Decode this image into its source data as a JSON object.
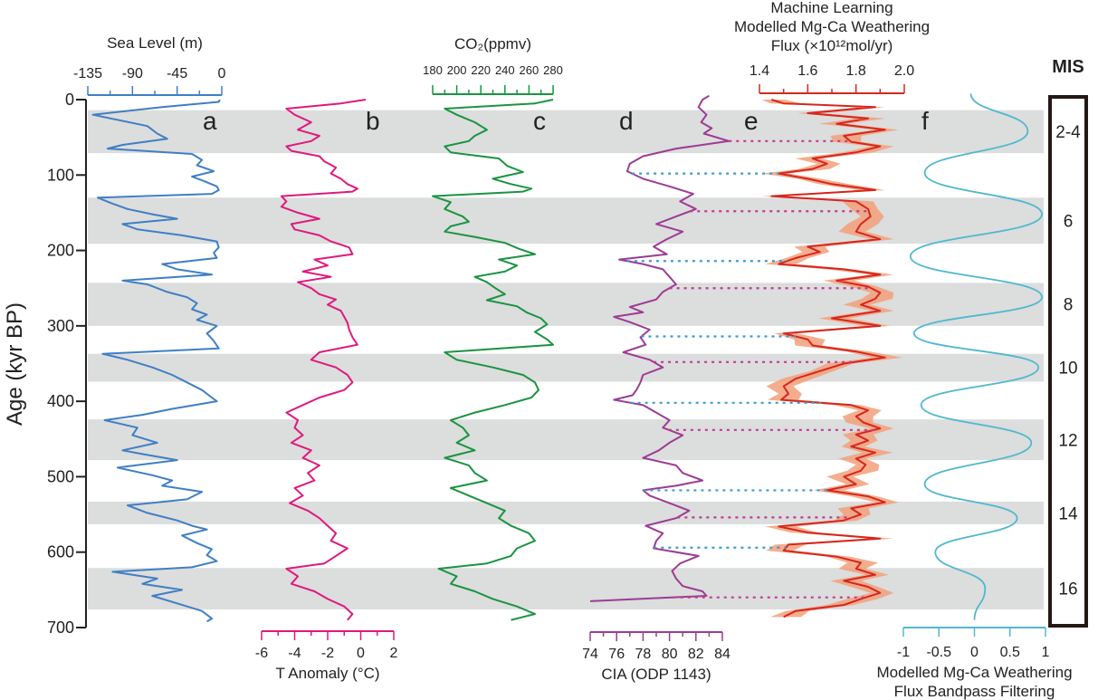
{
  "chart_data": {
    "type": "line",
    "title": "",
    "ylabel": "Age (kyr BP)",
    "ylim": [
      0,
      700
    ],
    "y_ticks": [
      0,
      100,
      200,
      300,
      400,
      500,
      600,
      700
    ],
    "y_tick_labels": [
      "0",
      "100",
      "200",
      "300",
      "400",
      "500",
      "600",
      "700"
    ],
    "glacial_bands_kyr": [
      [
        14,
        71
      ],
      [
        130,
        191
      ],
      [
        243,
        300
      ],
      [
        337,
        374
      ],
      [
        424,
        478
      ],
      [
        533,
        563
      ],
      [
        621,
        676
      ]
    ],
    "mis": {
      "title": "MIS",
      "labels": [
        {
          "label": "2-4",
          "age": 42
        },
        {
          "label": "6",
          "age": 160
        },
        {
          "label": "8",
          "age": 271
        },
        {
          "label": "10",
          "age": 355
        },
        {
          "label": "12",
          "age": 451
        },
        {
          "label": "14",
          "age": 548
        },
        {
          "label": "16",
          "age": 648
        }
      ]
    },
    "panels": [
      {
        "id": "a",
        "name": "Sea Level",
        "xlabel": "Sea Level (m)",
        "axis_position": "top",
        "xlim": [
          -135,
          0
        ],
        "ticks": [
          -135,
          -90,
          -45,
          0
        ],
        "color": "#3f7fc4",
        "ages": [
          0,
          3,
          10,
          20,
          35,
          45,
          52,
          60,
          65,
          72,
          80,
          87,
          95,
          102,
          108,
          115,
          120,
          125,
          130,
          138,
          145,
          152,
          158,
          165,
          172,
          180,
          188,
          196,
          203,
          210,
          218,
          225,
          232,
          240,
          245,
          255,
          262,
          270,
          278,
          285,
          292,
          300,
          310,
          320,
          330,
          337,
          345,
          355,
          365,
          375,
          385,
          395,
          400,
          410,
          418,
          425,
          435,
          445,
          455,
          465,
          470,
          478,
          488,
          498,
          505,
          512,
          520,
          530,
          538,
          548,
          558,
          565,
          570,
          578,
          588,
          596,
          604,
          612,
          620,
          626,
          635,
          642,
          650,
          658,
          668,
          678,
          688,
          692
        ],
        "values": [
          -2,
          -3,
          -60,
          -130,
          -75,
          -65,
          -55,
          -100,
          -115,
          -30,
          -20,
          -25,
          -8,
          -30,
          -18,
          -5,
          -3,
          -10,
          -125,
          -110,
          -95,
          -70,
          -45,
          -100,
          -85,
          -40,
          -5,
          -3,
          -8,
          -5,
          -60,
          -45,
          -10,
          -100,
          -75,
          -55,
          -35,
          -25,
          -30,
          -15,
          -25,
          -5,
          -15,
          -8,
          -3,
          -120,
          -95,
          -70,
          -50,
          -35,
          -20,
          -10,
          -5,
          -50,
          -80,
          -118,
          -85,
          -90,
          -65,
          -100,
          -80,
          -45,
          -105,
          -70,
          -50,
          -60,
          -20,
          -35,
          -95,
          -75,
          -45,
          -30,
          -15,
          -40,
          -25,
          -10,
          -15,
          -5,
          -30,
          -110,
          -65,
          -80,
          -40,
          -70,
          -45,
          -20,
          -10,
          -15
        ]
      },
      {
        "id": "b",
        "name": "T Anomaly",
        "xlabel": "T Anomaly (°C)",
        "axis_position": "bottom",
        "xlim": [
          -6,
          2
        ],
        "ticks": [
          -6,
          -4,
          -2,
          0,
          2
        ],
        "color": "#e0197d",
        "ages": [
          0,
          5,
          12,
          20,
          30,
          40,
          48,
          55,
          62,
          68,
          75,
          82,
          90,
          98,
          105,
          112,
          118,
          122,
          128,
          135,
          142,
          150,
          158,
          165,
          172,
          180,
          188,
          196,
          205,
          212,
          220,
          228,
          235,
          242,
          250,
          258,
          265,
          272,
          280,
          288,
          296,
          305,
          315,
          325,
          335,
          345,
          355,
          365,
          375,
          385,
          395,
          405,
          415,
          425,
          435,
          445,
          455,
          465,
          475,
          485,
          495,
          505,
          515,
          525,
          535,
          545,
          555,
          565,
          575,
          585,
          595,
          605,
          615,
          622,
          632,
          642,
          652,
          662,
          672,
          682,
          690
        ],
        "values": [
          0.3,
          -1.2,
          -4.5,
          -4.0,
          -3.0,
          -3.8,
          -2.5,
          -3.0,
          -4.5,
          -4.2,
          -2.5,
          -2.2,
          -1.5,
          -1.8,
          -1.2,
          -0.8,
          -0.2,
          -0.5,
          -4.8,
          -4.5,
          -4.8,
          -3.8,
          -2.5,
          -4.2,
          -4.0,
          -2.5,
          -1.8,
          -0.7,
          -0.5,
          -2.8,
          -2.0,
          -3.5,
          -1.8,
          -3.8,
          -3.0,
          -2.5,
          -1.5,
          -2.0,
          -1.2,
          -1.0,
          -0.8,
          -0.7,
          -0.5,
          -0.2,
          -2.5,
          -3.0,
          -1.5,
          -0.8,
          -0.5,
          -1.0,
          -2.5,
          -3.5,
          -4.5,
          -3.8,
          -4.0,
          -3.5,
          -4.2,
          -3.0,
          -3.5,
          -2.5,
          -3.2,
          -2.8,
          -4.0,
          -3.5,
          -4.3,
          -3.2,
          -2.5,
          -2.0,
          -1.5,
          -1.8,
          -0.8,
          -1.5,
          -2.2,
          -4.5,
          -3.8,
          -4.2,
          -2.8,
          -2.0,
          -1.0,
          -0.5,
          -0.8
        ]
      },
      {
        "id": "c",
        "name": "CO2",
        "xlabel": "CO₂(ppmv)",
        "axis_position": "top",
        "xlim": [
          180,
          280
        ],
        "ticks": [
          180,
          200,
          220,
          240,
          260,
          280
        ],
        "color": "#1a9440",
        "ages": [
          0,
          5,
          12,
          20,
          30,
          40,
          48,
          55,
          62,
          70,
          78,
          88,
          96,
          105,
          112,
          118,
          122,
          128,
          136,
          145,
          155,
          162,
          168,
          175,
          182,
          190,
          198,
          205,
          212,
          220,
          228,
          235,
          242,
          250,
          258,
          266,
          274,
          282,
          290,
          298,
          308,
          318,
          325,
          335,
          345,
          355,
          365,
          375,
          385,
          395,
          405,
          415,
          425,
          435,
          445,
          455,
          465,
          475,
          485,
          495,
          505,
          515,
          525,
          535,
          545,
          555,
          565,
          575,
          585,
          595,
          605,
          615,
          622,
          632,
          642,
          652,
          662,
          672,
          682,
          690
        ],
        "values": [
          280,
          265,
          190,
          200,
          215,
          225,
          215,
          210,
          190,
          195,
          235,
          242,
          255,
          230,
          245,
          262,
          255,
          180,
          195,
          190,
          205,
          210,
          195,
          190,
          215,
          240,
          252,
          265,
          235,
          250,
          240,
          215,
          225,
          232,
          240,
          225,
          250,
          258,
          270,
          275,
          265,
          275,
          280,
          190,
          200,
          230,
          255,
          265,
          268,
          262,
          240,
          215,
          195,
          205,
          210,
          200,
          215,
          190,
          210,
          215,
          225,
          195,
          210,
          225,
          240,
          235,
          245,
          260,
          265,
          250,
          245,
          225,
          185,
          200,
          195,
          215,
          230,
          250,
          265,
          245
        ]
      },
      {
        "id": "d",
        "name": "CIA",
        "xlabel": "CIA (ODP 1143)",
        "axis_position": "bottom",
        "xlim": [
          74,
          84
        ],
        "ticks": [
          74,
          76,
          78,
          80,
          82,
          84
        ],
        "color": "#9c3c94",
        "ages": [
          -5,
          0,
          10,
          20,
          30,
          38,
          45,
          55,
          65,
          75,
          85,
          95,
          105,
          115,
          125,
          135,
          145,
          155,
          165,
          175,
          185,
          195,
          205,
          212,
          218,
          225,
          235,
          245,
          255,
          265,
          275,
          282,
          288,
          295,
          305,
          315,
          325,
          335,
          345,
          355,
          365,
          375,
          385,
          392,
          398,
          405,
          415,
          425,
          435,
          445,
          455,
          465,
          475,
          485,
          495,
          505,
          512,
          518,
          525,
          535,
          545,
          555,
          565,
          575,
          585,
          595,
          605,
          615,
          625,
          635,
          645,
          652,
          658,
          665
        ],
        "values": [
          83,
          82.5,
          82.2,
          82.8,
          82.4,
          83.2,
          82.6,
          84.5,
          80.5,
          78,
          77,
          76.8,
          78,
          80,
          81.8,
          80.8,
          82,
          80.5,
          79,
          81,
          79.8,
          78.8,
          79.8,
          76.2,
          78,
          79.5,
          80,
          80.5,
          79.5,
          79,
          77,
          78,
          75.8,
          77,
          78.5,
          77.8,
          78.2,
          76.5,
          78.5,
          79.5,
          78,
          77.8,
          77.5,
          77.2,
          75.8,
          78,
          79,
          80,
          79.5,
          81,
          80,
          79.2,
          78,
          80.5,
          81,
          82.5,
          80.5,
          78,
          78.5,
          80,
          81.5,
          80.5,
          78.2,
          79.5,
          79,
          78.8,
          82.2,
          80.8,
          80.2,
          80.5,
          81,
          82.5,
          82.8,
          74
        ]
      },
      {
        "id": "e",
        "name": "Machine Learning Modelled Mg-Ca Weathering Flux",
        "xlabel": "Machine Learning Modelled Mg-Ca Weathering Flux (×10¹²mol/yr)",
        "xlabel_lines": [
          "Machine Learning",
          "Modelled Mg-Ca Weathering",
          "Flux (×10¹²mol/yr)"
        ],
        "axis_position": "top",
        "xlim": [
          1.4,
          2.0
        ],
        "ticks": [
          1.4,
          1.6,
          1.8,
          2.0
        ],
        "tick_labels": [
          "1.4",
          "1.6",
          "1.8",
          "2.0"
        ],
        "color": "#d7261e",
        "band_color": "#f2a07a",
        "ages": [
          0,
          5,
          10,
          18,
          25,
          32,
          40,
          48,
          56,
          62,
          70,
          78,
          85,
          92,
          98,
          105,
          112,
          120,
          128,
          135,
          145,
          155,
          165,
          175,
          185,
          195,
          202,
          210,
          218,
          225,
          232,
          240,
          248,
          256,
          264,
          272,
          280,
          290,
          300,
          310,
          318,
          326,
          334,
          342,
          350,
          360,
          370,
          380,
          390,
          398,
          405,
          412,
          420,
          428,
          436,
          444,
          452,
          460,
          468,
          476,
          484,
          492,
          500,
          510,
          518,
          526,
          534,
          542,
          550,
          558,
          566,
          574,
          582,
          590,
          598,
          606,
          614,
          622,
          630,
          638,
          646,
          654,
          662,
          670,
          678,
          686
        ],
        "values": [
          1.45,
          1.5,
          1.88,
          1.6,
          1.85,
          1.72,
          1.92,
          1.75,
          1.78,
          1.9,
          1.8,
          1.62,
          1.68,
          1.62,
          1.48,
          1.6,
          1.7,
          1.88,
          1.45,
          1.8,
          1.85,
          1.86,
          1.82,
          1.8,
          1.9,
          1.6,
          1.65,
          1.55,
          1.48,
          1.75,
          1.9,
          1.72,
          1.85,
          1.9,
          1.88,
          1.82,
          1.9,
          1.7,
          1.9,
          1.5,
          1.6,
          1.62,
          1.8,
          1.92,
          1.75,
          1.65,
          1.55,
          1.5,
          1.52,
          1.49,
          1.78,
          1.85,
          1.8,
          1.83,
          1.9,
          1.8,
          1.85,
          1.78,
          1.88,
          1.8,
          1.84,
          1.82,
          1.75,
          1.8,
          1.68,
          1.85,
          1.92,
          1.78,
          1.82,
          1.75,
          1.48,
          1.6,
          1.9,
          1.52,
          1.5,
          1.72,
          1.82,
          1.8,
          1.88,
          1.75,
          1.85,
          1.9,
          1.82,
          1.75,
          1.55,
          1.5
        ],
        "band_halfwidth": 0.04
      },
      {
        "id": "f",
        "name": "Modelled Mg-Ca Weathering Flux Bandpass Filtering",
        "xlabel": "Modelled Mg-Ca Weathering Flux Bandpass Filtering",
        "xlabel_lines": [
          "Modelled Mg-Ca Weathering",
          "Flux Bandpass Filtering"
        ],
        "axis_position": "bottom",
        "xlim": [
          -1,
          1
        ],
        "ticks": [
          -1,
          -0.5,
          0,
          0.5,
          1
        ],
        "tick_labels": [
          "-1",
          "-0.5",
          "0",
          "0.5",
          "1"
        ],
        "color": "#4fb8cf",
        "ages": [
          -8,
          42,
          97,
          152,
          208,
          262,
          310,
          355,
          405,
          455,
          510,
          555,
          600,
          648,
          690
        ],
        "values": [
          -0.05,
          0.75,
          -0.7,
          0.95,
          -0.9,
          0.95,
          -0.85,
          0.9,
          -0.75,
          0.8,
          -0.7,
          0.6,
          -0.55,
          0.15,
          0.0
        ]
      }
    ],
    "tie_lines": [
      {
        "age": 55,
        "color": "#c03c8e",
        "from": "d",
        "to": "e"
      },
      {
        "age": 98,
        "color": "#3a9bd6",
        "from": "d",
        "to": "e"
      },
      {
        "age": 148,
        "color": "#c03c8e",
        "from": "d",
        "to": "e"
      },
      {
        "age": 214,
        "color": "#3a9bd6",
        "from": "d",
        "to": "e"
      },
      {
        "age": 250,
        "color": "#c03c8e",
        "from": "d",
        "to": "e"
      },
      {
        "age": 314,
        "color": "#3a9bd6",
        "from": "d",
        "to": "e"
      },
      {
        "age": 348,
        "color": "#c03c8e",
        "from": "d",
        "to": "e"
      },
      {
        "age": 402,
        "color": "#3a9bd6",
        "from": "d",
        "to": "e"
      },
      {
        "age": 438,
        "color": "#c03c8e",
        "from": "d",
        "to": "e"
      },
      {
        "age": 518,
        "color": "#3a9bd6",
        "from": "d",
        "to": "e"
      },
      {
        "age": 554,
        "color": "#c03c8e",
        "from": "d",
        "to": "e"
      },
      {
        "age": 594,
        "color": "#3a9bd6",
        "from": "d",
        "to": "e"
      },
      {
        "age": 660,
        "color": "#c03c8e",
        "from": "d",
        "to": "e"
      }
    ]
  }
}
